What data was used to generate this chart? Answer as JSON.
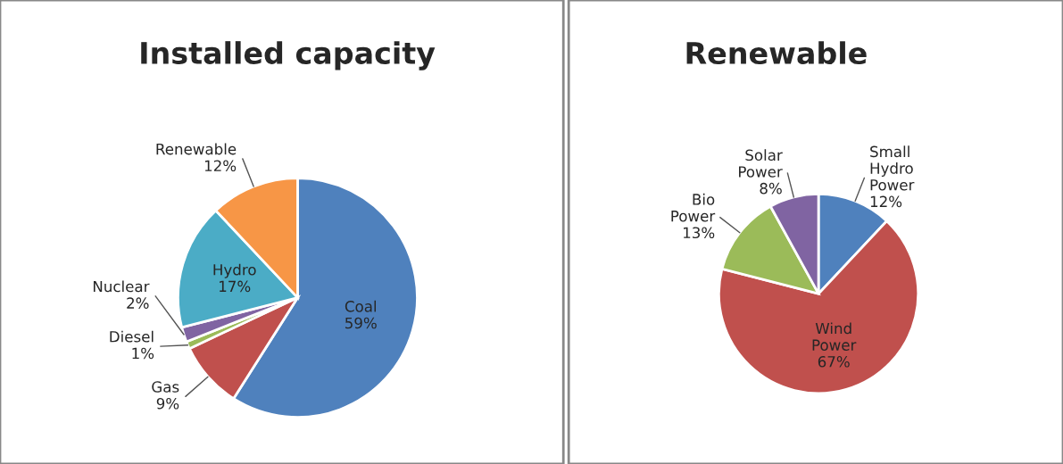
{
  "chart_data": [
    {
      "type": "pie",
      "title": "Installed capacity",
      "categories": [
        "Coal",
        "Gas",
        "Diesel",
        "Nuclear",
        "Hydro",
        "Renewable"
      ],
      "values": [
        59,
        9,
        1,
        2,
        17,
        12
      ],
      "value_labels": [
        "59%",
        "9%",
        "1%",
        "2%",
        "17%",
        "12%"
      ],
      "colors": [
        "#4f81bd",
        "#c0504d",
        "#9bbb59",
        "#8064a2",
        "#4bacc6",
        "#f79646"
      ],
      "legend": false
    },
    {
      "type": "pie",
      "title": "Renewable",
      "categories": [
        "Small Hydro Power",
        "Wind Power",
        "Bio Power",
        "Solar Power"
      ],
      "values": [
        12,
        67,
        13,
        8
      ],
      "value_labels": [
        "12%",
        "67%",
        "13%",
        "8%"
      ],
      "colors": [
        "#4f81bd",
        "#c0504d",
        "#9bbb59",
        "#8064a2"
      ],
      "legend": false
    }
  ]
}
